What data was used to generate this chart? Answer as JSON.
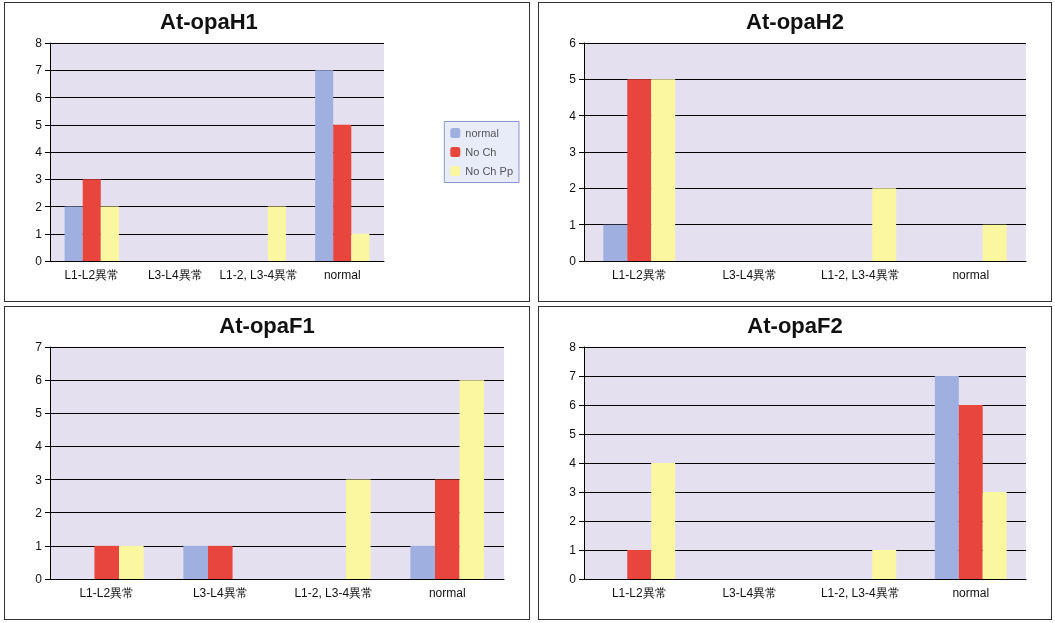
{
  "chart_data": [
    {
      "type": "bar",
      "title": "At-opaH1",
      "categories": [
        "L1-L2異常",
        "L3-L4異常",
        "L1-2, L3-4異常",
        "normal"
      ],
      "series": [
        {
          "name": "normal",
          "color": "#9fb0e0",
          "values": [
            2,
            0,
            0,
            7
          ]
        },
        {
          "name": "No Ch",
          "color": "#e8453c",
          "values": [
            3,
            0,
            0,
            5
          ]
        },
        {
          "name": "No Ch Pp",
          "color": "#fbf7a0",
          "values": [
            2,
            0,
            2,
            1
          ]
        }
      ],
      "ylim": [
        0,
        8
      ],
      "yticks": [
        0,
        1,
        2,
        3,
        4,
        5,
        6,
        7,
        8
      ],
      "grid": "y",
      "legend": "right"
    },
    {
      "type": "bar",
      "title": "At-opaH2",
      "categories": [
        "L1-L2異常",
        "L3-L4異常",
        "L1-2, L3-4異常",
        "normal"
      ],
      "series": [
        {
          "color": "#9fb0e0",
          "values": [
            1,
            0,
            0,
            0
          ]
        },
        {
          "color": "#e8453c",
          "values": [
            5,
            0,
            0,
            0
          ]
        },
        {
          "color": "#fbf7a0",
          "values": [
            5,
            0,
            2,
            1
          ]
        }
      ],
      "ylim": [
        0,
        6
      ],
      "yticks": [
        0,
        1,
        2,
        3,
        4,
        5,
        6
      ],
      "grid": "y",
      "legend": false
    },
    {
      "type": "bar",
      "title": "At-opaF1",
      "categories": [
        "L1-L2異常",
        "L3-L4異常",
        "L1-2, L3-4異常",
        "normal"
      ],
      "series": [
        {
          "color": "#9fb0e0",
          "values": [
            0,
            1,
            0,
            1
          ]
        },
        {
          "color": "#e8453c",
          "values": [
            1,
            1,
            0,
            3
          ]
        },
        {
          "color": "#fbf7a0",
          "values": [
            1,
            0,
            3,
            6
          ]
        }
      ],
      "ylim": [
        0,
        7
      ],
      "yticks": [
        0,
        1,
        2,
        3,
        4,
        5,
        6,
        7
      ],
      "grid": "y",
      "legend": false
    },
    {
      "type": "bar",
      "title": "At-opaF2",
      "categories": [
        "L1-L2異常",
        "L3-L4異常",
        "L1-2, L3-4異常",
        "normal"
      ],
      "series": [
        {
          "color": "#9fb0e0",
          "values": [
            0,
            0,
            0,
            7
          ]
        },
        {
          "color": "#e8453c",
          "values": [
            1,
            0,
            0,
            6
          ]
        },
        {
          "color": "#fbf7a0",
          "values": [
            4,
            0,
            1,
            3
          ]
        }
      ],
      "ylim": [
        0,
        8
      ],
      "yticks": [
        0,
        1,
        2,
        3,
        4,
        5,
        6,
        7,
        8
      ],
      "grid": "y",
      "legend": false
    }
  ]
}
